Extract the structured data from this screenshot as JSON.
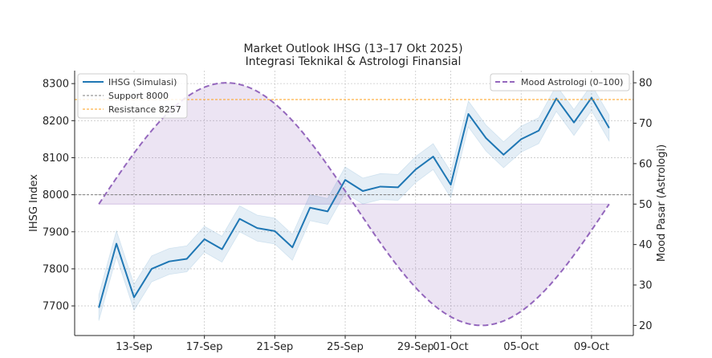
{
  "chart_data": {
    "type": "line",
    "title": "Market Outlook IHSG (13–17 Okt 2025)",
    "subtitle": "Integrasi Teknikal & Astrologi Finansial",
    "ylabel_left": "IHSG Index",
    "ylabel_right": "Mood Pasar (Astrologi)",
    "x_dates": [
      "2025-09-11",
      "2025-09-12",
      "2025-09-13",
      "2025-09-14",
      "2025-09-15",
      "2025-09-16",
      "2025-09-17",
      "2025-09-18",
      "2025-09-19",
      "2025-09-20",
      "2025-09-21",
      "2025-09-22",
      "2025-09-23",
      "2025-09-24",
      "2025-09-25",
      "2025-09-26",
      "2025-09-27",
      "2025-09-28",
      "2025-09-29",
      "2025-09-30",
      "2025-10-01",
      "2025-10-02",
      "2025-10-03",
      "2025-10-04",
      "2025-10-05",
      "2025-10-06",
      "2025-10-07",
      "2025-10-08",
      "2025-10-09",
      "2025-10-10"
    ],
    "x_ticks": [
      {
        "date": "2025-09-13",
        "label": "13-Sep"
      },
      {
        "date": "2025-09-17",
        "label": "17-Sep"
      },
      {
        "date": "2025-09-21",
        "label": "21-Sep"
      },
      {
        "date": "2025-09-25",
        "label": "25-Sep"
      },
      {
        "date": "2025-09-29",
        "label": "29-Sep"
      },
      {
        "date": "2025-10-01",
        "label": "01-Oct"
      },
      {
        "date": "2025-10-05",
        "label": "05-Oct"
      },
      {
        "date": "2025-10-09",
        "label": "09-Oct"
      }
    ],
    "x_range": [
      "2025-09-09T15:00",
      "2025-10-11T09:00"
    ],
    "ylim_left": [
      7620,
      8335
    ],
    "yticks_left": [
      7700,
      7800,
      7900,
      8000,
      8100,
      8200,
      8300
    ],
    "ylim_right": [
      17.5,
      83
    ],
    "yticks_right": [
      20,
      30,
      40,
      50,
      60,
      70,
      80
    ],
    "series": [
      {
        "name": "IHSG (Simulasi)",
        "axis": "left",
        "style": "solid",
        "color": "#1f77b4",
        "band_color": "#1f77b4",
        "band_width": 35,
        "values": [
          7695,
          7868,
          7723,
          7800,
          7820,
          7827,
          7880,
          7853,
          7935,
          7910,
          7902,
          7858,
          7965,
          7955,
          8040,
          8010,
          8022,
          8020,
          8068,
          8103,
          8027,
          8218,
          8153,
          8108,
          8150,
          8173,
          8260,
          8195,
          8262,
          8180
        ]
      },
      {
        "name": "Mood Astrologi (0–100)",
        "axis": "right",
        "style": "dashed",
        "color": "#9467bd",
        "fill_color": "#9467bd",
        "fill_baseline": 50,
        "amplitude": 30,
        "period_days": 29
      }
    ],
    "reference_lines": [
      {
        "name": "Support 8000",
        "value": 8000,
        "axis": "left",
        "color": "#7f7f7f",
        "style": "dashed"
      },
      {
        "name": "Resistance 8257",
        "value": 8257,
        "axis": "left",
        "color": "#ff9f1a",
        "style": "dashed"
      }
    ],
    "legend_left_position": "upper-left",
    "legend_right_position": "upper-right",
    "grid": true
  }
}
